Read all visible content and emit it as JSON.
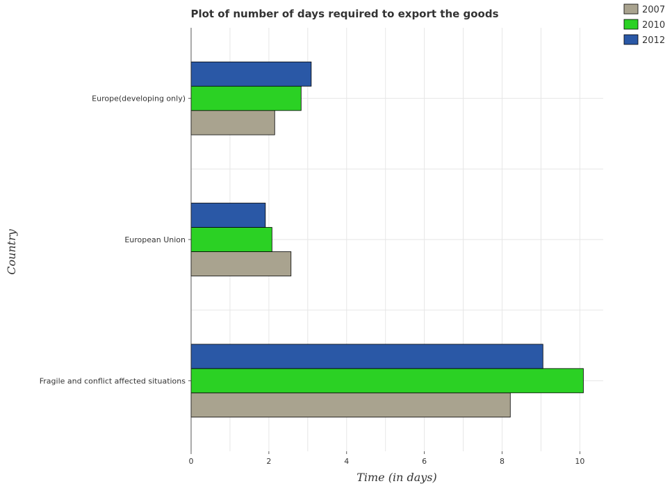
{
  "chart_data": {
    "type": "bar",
    "orientation": "horizontal",
    "title": "Plot of number of days required to export the goods",
    "xlabel": "Time (in days)",
    "ylabel": "Country",
    "xlim": [
      0,
      10.6
    ],
    "xticks": [
      0,
      2,
      4,
      6,
      8,
      10
    ],
    "grid": true,
    "legend_position": "top-right",
    "categories": [
      "Europe(developing only)",
      "European Union",
      "Fragile and conflict affected situations"
    ],
    "series": [
      {
        "name": "2007",
        "color": "#a9a38f",
        "values": [
          2.15,
          2.57,
          8.21
        ]
      },
      {
        "name": "2010",
        "color": "#2bd124",
        "values": [
          2.83,
          2.08,
          10.09
        ]
      },
      {
        "name": "2012",
        "color": "#2a58a6",
        "values": [
          3.09,
          1.91,
          9.05
        ]
      }
    ]
  }
}
